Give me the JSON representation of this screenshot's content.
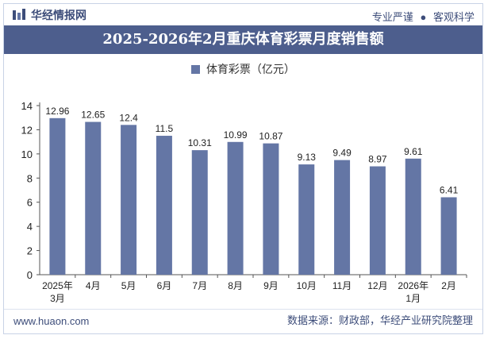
{
  "header": {
    "brand": "华经情报网",
    "tagline_left": "专业严谨",
    "tagline_right": "客观科学",
    "title": "2025-2026年2月重庆体育彩票月度销售额"
  },
  "footer": {
    "website": "www.huaon.com",
    "source": "数据来源：财政部，华经产业研究院整理"
  },
  "chart_data": {
    "type": "bar",
    "categories": [
      "2025年3月",
      "4月",
      "5月",
      "6月",
      "7月",
      "8月",
      "9月",
      "10月",
      "11月",
      "12月",
      "2026年1月",
      "2月"
    ],
    "series": [
      {
        "name": "体育彩票（亿元）",
        "values": [
          12.96,
          12.65,
          12.4,
          11.5,
          10.31,
          10.99,
          10.87,
          9.13,
          9.49,
          8.97,
          9.61,
          6.41
        ],
        "color": "#6476a5"
      }
    ],
    "ylim": [
      0,
      14
    ],
    "yticks": [
      0,
      2,
      4,
      6,
      8,
      10,
      12,
      14
    ],
    "legend_position": "top-center",
    "grid": false
  },
  "colors": {
    "accent": "#4d5e8d",
    "bar": "#6476a5"
  }
}
